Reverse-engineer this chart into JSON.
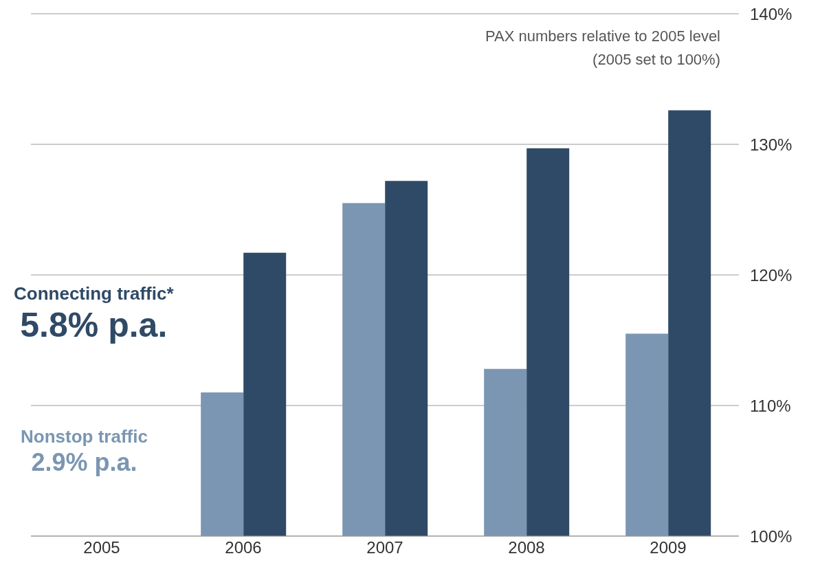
{
  "chart_data": {
    "type": "bar",
    "title": "PAX numbers relative to 2005 level\n(2005 set to 100%)",
    "categories": [
      "2005",
      "2006",
      "2007",
      "2008",
      "2009"
    ],
    "series": [
      {
        "name": "Nonstop traffic",
        "color": "#7a96b2",
        "values": [
          100,
          111.0,
          125.5,
          112.8,
          115.5
        ]
      },
      {
        "name": "Connecting traffic*",
        "color": "#2f4a66",
        "values": [
          100,
          121.7,
          127.2,
          129.7,
          132.6
        ]
      }
    ],
    "annotations": [
      "2.9% p.a.",
      "5.8% p.a."
    ],
    "ylim": [
      100,
      140
    ],
    "yticks": [
      {
        "value": 100,
        "label": "100%"
      },
      {
        "value": 110,
        "label": "110%"
      },
      {
        "value": 120,
        "label": "120%"
      },
      {
        "value": 130,
        "label": "130%"
      },
      {
        "value": 140,
        "label": "140%"
      }
    ],
    "grid": "y"
  }
}
